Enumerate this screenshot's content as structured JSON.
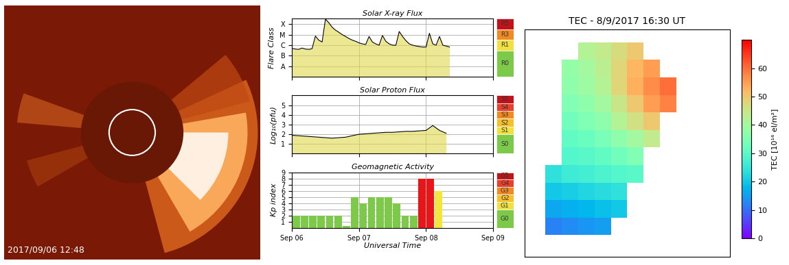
{
  "chart_data": [
    {
      "type": "image",
      "annotations": [
        "2017/09/06 12:48"
      ]
    },
    {
      "type": "line",
      "title": "Solar X-ray Flux",
      "ylabel": "Flare Class",
      "log": "y",
      "grid": true,
      "tick_labels": "y",
      "color": "#000000",
      "x": [
        0,
        0.05,
        0.1,
        0.15,
        0.2,
        0.25,
        0.3,
        0.35,
        0.4,
        0.45,
        0.5,
        0.55,
        0.6,
        0.65,
        0.7,
        0.75,
        0.8,
        0.85,
        0.9,
        0.95,
        1.0,
        1.05,
        1.1,
        1.15,
        1.2,
        1.25,
        1.3,
        1.35,
        1.4,
        1.45,
        1.5,
        1.55,
        1.6,
        1.65,
        1.7,
        1.75,
        1.8,
        1.85,
        1.9,
        1.95,
        2.0,
        2.05,
        2.1,
        2.15,
        2.2,
        2.25,
        2.3,
        2.35
      ],
      "values": [
        1.5e-06,
        1.3e-06,
        1.2e-06,
        1.6e-06,
        1.3e-06,
        1.2e-06,
        1.4e-06,
        2.2e-05,
        9e-06,
        6e-06,
        0.0009,
        0.0004,
        0.00015,
        8e-05,
        5e-05,
        3e-05,
        2e-05,
        1.3e-05,
        9e-06,
        7e-06,
        5e-06,
        4e-06,
        3.5e-06,
        2e-05,
        6e-06,
        4e-06,
        3e-06,
        2.5e-05,
        7e-06,
        4e-06,
        3e-06,
        3e-06,
        6e-05,
        2e-05,
        8e-06,
        4e-06,
        3e-06,
        2.5e-06,
        2.2e-06,
        2e-06,
        2e-06,
        4e-05,
        4e-06,
        3e-06,
        2e-05,
        3e-06,
        2.5e-06,
        2e-06
      ],
      "xlim": [
        0,
        3
      ],
      "xticks": [
        0,
        1,
        2,
        3
      ],
      "ylim": [
        3e-09,
        0.001
      ],
      "yticks": [
        {
          "value": 3e-08,
          "label": "A"
        },
        {
          "value": 3e-07,
          "label": "B"
        },
        {
          "value": 3e-06,
          "label": "C"
        },
        {
          "value": 3e-05,
          "label": "M"
        },
        {
          "value": 0.0003,
          "label": "X"
        }
      ],
      "annotations": [
        "R5",
        "R3",
        "R1",
        "R0"
      ]
    },
    {
      "type": "line",
      "title": "Solar Proton Flux",
      "ylabel": "Log₁₀(pfu)",
      "grid": true,
      "tick_labels": "y",
      "color": "#000000",
      "x": [
        0,
        0.1,
        0.2,
        0.3,
        0.4,
        0.5,
        0.6,
        0.7,
        0.8,
        0.9,
        1.0,
        1.1,
        1.2,
        1.3,
        1.4,
        1.5,
        1.6,
        1.7,
        1.8,
        1.9,
        2.0,
        2.1,
        2.2,
        2.3
      ],
      "values": [
        1.9,
        1.85,
        1.8,
        1.75,
        1.7,
        1.65,
        1.6,
        1.65,
        1.7,
        1.85,
        2.0,
        2.05,
        2.1,
        2.15,
        2.2,
        2.2,
        2.25,
        2.3,
        2.3,
        2.35,
        2.4,
        2.9,
        2.4,
        2.1
      ],
      "xlim": [
        0,
        3
      ],
      "xticks": [
        0,
        1,
        2,
        3
      ],
      "ylim": [
        0,
        6
      ],
      "yticks": [
        1,
        2,
        3,
        4,
        5
      ],
      "annotations": [
        "S5",
        "S4",
        "S3",
        "S2",
        "S1",
        "S0"
      ]
    },
    {
      "type": "bar",
      "title": "Geomagnetic Activity",
      "ylabel": "Kp index",
      "xlabel": "Universal Time",
      "grid": true,
      "x": [
        0.0625,
        0.1875,
        0.3125,
        0.4375,
        0.5625,
        0.6875,
        0.8125,
        0.9375,
        1.0625,
        1.1875,
        1.3125,
        1.4375,
        1.5625,
        1.6875,
        1.8125,
        1.9375,
        2.0625,
        2.1875
      ],
      "values": [
        2,
        2,
        2,
        2,
        2,
        2,
        0.3,
        5,
        4,
        5,
        5,
        5,
        4,
        2,
        2,
        8,
        8,
        6
      ],
      "colors": [
        "#7dc94a",
        "#7dc94a",
        "#7dc94a",
        "#7dc94a",
        "#7dc94a",
        "#7dc94a",
        "#7dc94a",
        "#7dc94a",
        "#7dc94a",
        "#7dc94a",
        "#7dc94a",
        "#7dc94a",
        "#7dc94a",
        "#7dc94a",
        "#7dc94a",
        "#e8151b",
        "#e8151b",
        "#f2e53d"
      ],
      "xlim": [
        0,
        3
      ],
      "xticks": [
        {
          "value": 0,
          "label": "Sep 06"
        },
        {
          "value": 1,
          "label": "Sep 07"
        },
        {
          "value": 2,
          "label": "Sep 08"
        },
        {
          "value": 3,
          "label": "Sep 09"
        }
      ],
      "ylim": [
        0,
        9
      ],
      "yticks": [
        1,
        2,
        3,
        4,
        5,
        6,
        7,
        8,
        9
      ],
      "annotations": [
        "G5",
        "G4",
        "G3",
        "G2",
        "G1",
        "G0"
      ]
    },
    {
      "type": "heatmap",
      "title": "TEC - 8/9/2017 16:30 UT",
      "tick_labels": false,
      "x": [
        -73,
        -69,
        -65,
        -61,
        -57,
        -53,
        -49,
        -45
      ],
      "y": [
        -53,
        -49,
        -45,
        -41,
        -37,
        -33,
        -29,
        -25,
        -21,
        -17,
        -13
      ],
      "cells": [
        [
          12,
          13,
          14,
          15,
          null,
          null,
          null,
          null
        ],
        [
          16,
          17,
          18,
          19,
          20,
          null,
          null,
          null
        ],
        [
          20,
          21,
          22,
          23,
          24,
          null,
          null,
          null
        ],
        [
          24,
          26,
          27,
          28,
          29,
          30,
          null,
          null
        ],
        [
          null,
          29,
          30,
          31,
          33,
          35,
          null,
          null
        ],
        [
          null,
          31,
          32,
          34,
          37,
          40,
          44,
          null
        ],
        [
          null,
          33,
          35,
          37,
          42,
          46,
          50,
          null
        ],
        [
          null,
          35,
          37,
          40,
          45,
          50,
          55,
          58
        ],
        [
          null,
          37,
          39,
          42,
          48,
          53,
          57,
          60
        ],
        [
          null,
          38,
          40,
          43,
          48,
          52,
          55,
          null
        ],
        [
          null,
          null,
          42,
          44,
          47,
          50,
          null,
          null
        ]
      ],
      "xlim": [
        -80,
        -30
      ],
      "ylim": [
        -60,
        -8
      ],
      "colorbar_lim": [
        0,
        70
      ],
      "colorbar_ticks": [
        0,
        10,
        20,
        30,
        40,
        50,
        60
      ],
      "colorbar_label": "TEC [10¹⁶ el/m²]"
    }
  ]
}
